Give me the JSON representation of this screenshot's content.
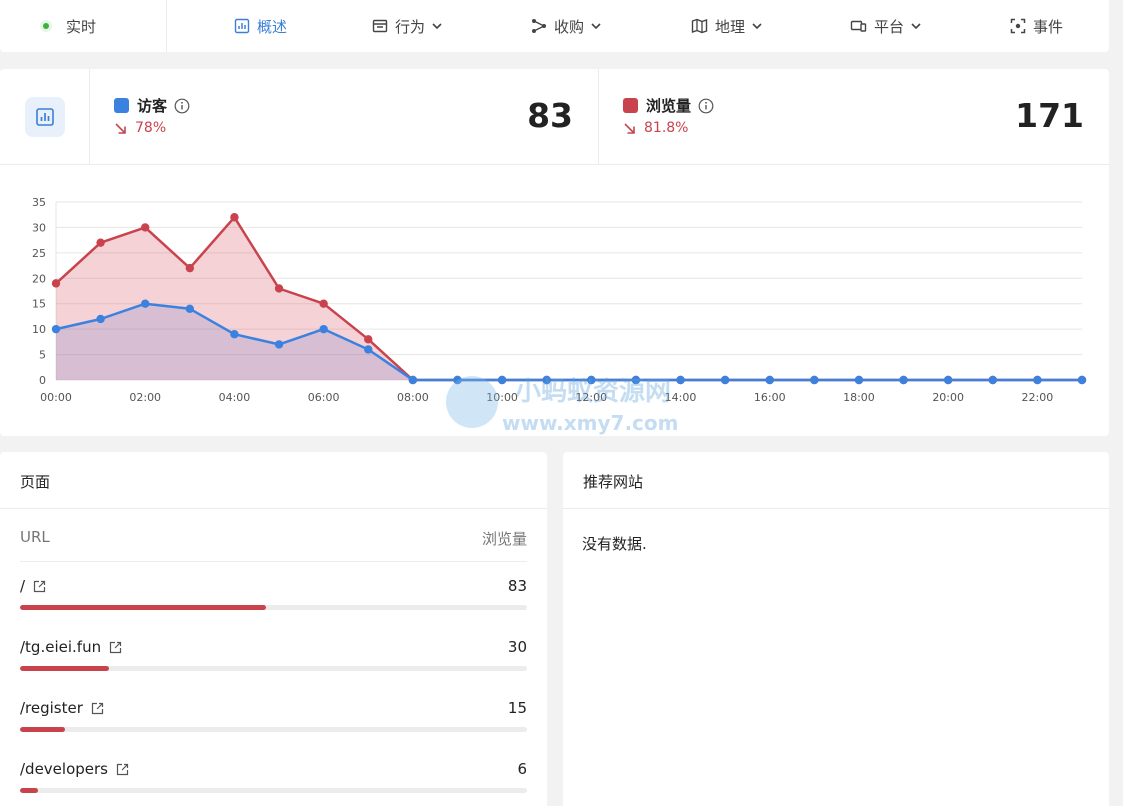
{
  "nav": {
    "live_label": "实时",
    "items": [
      {
        "label": "概述",
        "icon": "bar-chart-icon",
        "active": true,
        "dropdown": false
      },
      {
        "label": "行为",
        "icon": "browser-window-icon",
        "active": false,
        "dropdown": true
      },
      {
        "label": "收购",
        "icon": "share-nodes-icon",
        "active": false,
        "dropdown": true
      },
      {
        "label": "地理",
        "icon": "map-icon",
        "active": false,
        "dropdown": true
      },
      {
        "label": "平台",
        "icon": "devices-icon",
        "active": false,
        "dropdown": true
      },
      {
        "label": "事件",
        "icon": "focus-icon",
        "active": false,
        "dropdown": false
      }
    ]
  },
  "metrics": [
    {
      "label": "访客",
      "color": "#3b82e0",
      "change": "78%",
      "trend": "down",
      "value": "83"
    },
    {
      "label": "浏览量",
      "color": "#c9434d",
      "change": "81.8%",
      "trend": "down",
      "value": "171"
    }
  ],
  "chart_data": {
    "type": "area",
    "x": [
      "00:00",
      "01:00",
      "02:00",
      "03:00",
      "04:00",
      "05:00",
      "06:00",
      "07:00",
      "08:00",
      "09:00",
      "10:00",
      "11:00",
      "12:00",
      "13:00",
      "14:00",
      "15:00",
      "16:00",
      "17:00",
      "18:00",
      "19:00",
      "20:00",
      "21:00",
      "22:00",
      "23:00"
    ],
    "x_tick_labels": [
      "00:00",
      "02:00",
      "04:00",
      "06:00",
      "08:00",
      "10:00",
      "12:00",
      "14:00",
      "16:00",
      "18:00",
      "20:00",
      "22:00"
    ],
    "ylim": [
      0,
      35
    ],
    "y_ticks": [
      0,
      5,
      10,
      15,
      20,
      25,
      30,
      35
    ],
    "grid": true,
    "series": [
      {
        "name": "浏览量",
        "color": "#c9434d",
        "values": [
          19,
          27,
          30,
          22,
          32,
          18,
          15,
          8,
          0,
          0,
          0,
          0,
          0,
          0,
          0,
          0,
          0,
          0,
          0,
          0,
          0,
          0,
          0,
          0
        ]
      },
      {
        "name": "访客",
        "color": "#3b82e0",
        "values": [
          10,
          12,
          15,
          14,
          9,
          7,
          10,
          6,
          0,
          0,
          0,
          0,
          0,
          0,
          0,
          0,
          0,
          0,
          0,
          0,
          0,
          0,
          0,
          0
        ]
      }
    ]
  },
  "watermark": {
    "title": "小蚂蚁资源网",
    "url": "www.xmy7.com"
  },
  "pages": {
    "title": "页面",
    "col_url": "URL",
    "col_views": "浏览量",
    "rows": [
      {
        "label": "/",
        "value": "83",
        "share": 0.485
      },
      {
        "label": "/tg.eiei.fun",
        "value": "30",
        "share": 0.175
      },
      {
        "label": "/register",
        "value": "15",
        "share": 0.088
      },
      {
        "label": "/developers",
        "value": "6",
        "share": 0.035
      }
    ]
  },
  "referrers": {
    "title": "推荐网站",
    "empty_text": "没有数据."
  }
}
